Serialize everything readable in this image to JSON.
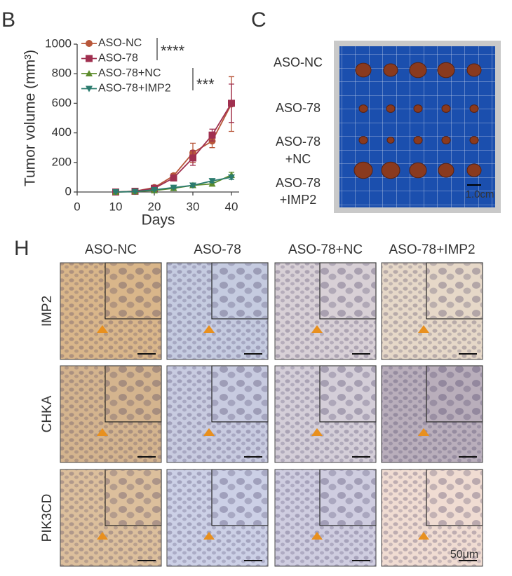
{
  "panels": {
    "b": "B",
    "c": "C",
    "h": "H"
  },
  "chart_data": {
    "type": "line",
    "y_label": "Tumor volume (mm³)",
    "x_label": "Days",
    "x": [
      10,
      15,
      20,
      25,
      30,
      35,
      40
    ],
    "series": [
      {
        "name": "ASO-NC",
        "color": "#b8573a",
        "marker": "circle",
        "values": [
          0,
          5,
          30,
          110,
          265,
          345,
          595
        ],
        "errors": [
          0,
          3,
          8,
          15,
          65,
          45,
          185
        ]
      },
      {
        "name": "ASO-78",
        "color": "#a03050",
        "marker": "square",
        "values": [
          0,
          5,
          25,
          95,
          230,
          385,
          600
        ],
        "errors": [
          0,
          3,
          6,
          12,
          50,
          40,
          130
        ]
      },
      {
        "name": "ASO-78+NC",
        "color": "#5d8c2c",
        "marker": "triangle-up",
        "values": [
          0,
          3,
          10,
          25,
          45,
          55,
          115
        ],
        "errors": [
          0,
          2,
          4,
          6,
          10,
          12,
          18
        ]
      },
      {
        "name": "ASO-78+IMP2",
        "color": "#2b7b6e",
        "marker": "triangle-down",
        "values": [
          0,
          3,
          15,
          30,
          45,
          75,
          100
        ],
        "errors": [
          0,
          2,
          4,
          6,
          10,
          12,
          15
        ]
      }
    ],
    "annotations": [
      "****",
      "***"
    ],
    "xlim": [
      0,
      42
    ],
    "xticks": [
      0,
      10,
      20,
      30,
      40
    ],
    "ylim": [
      0,
      1000
    ],
    "yticks": [
      0,
      200,
      400,
      600,
      800,
      1000
    ],
    "grid": false
  },
  "photo": {
    "row_labels": [
      [
        "ASO-NC"
      ],
      [
        "ASO-78"
      ],
      [
        "ASO-78",
        "+NC"
      ],
      [
        "ASO-78",
        "+IMP2"
      ]
    ],
    "scale": "1.0cm"
  },
  "ihc": {
    "columns": [
      "ASO-NC",
      "ASO-78",
      "ASO-78+NC",
      "ASO-78+IMP2"
    ],
    "rows": [
      "IMP2",
      "CHKA",
      "PIK3CD"
    ],
    "scale": "50μm"
  }
}
